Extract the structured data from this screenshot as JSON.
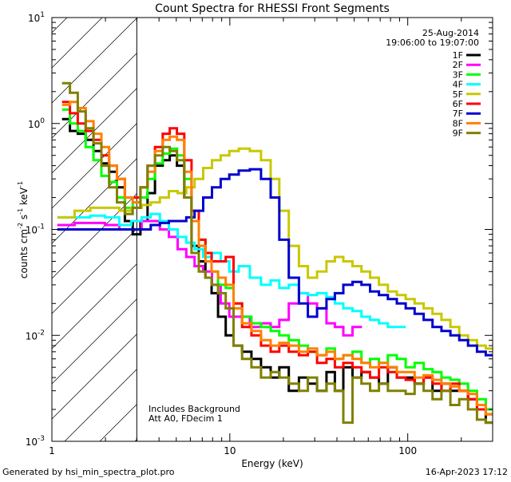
{
  "chart_data": {
    "type": "line",
    "title": "Count Spectra for RHESSI Front Segments",
    "xlabel": "Energy (keV)",
    "ylabel": {
      "base": "counts cm",
      "exp1": "-2",
      "mid1": " s",
      "exp2": "-1",
      "mid2": " keV",
      "exp3": "-1"
    },
    "xscale": "log",
    "yscale": "log",
    "xlim": [
      1,
      300
    ],
    "ylim": [
      0.001,
      10
    ],
    "xticks": [
      {
        "v": 1,
        "label": "1"
      },
      {
        "v": 10,
        "label": "10"
      },
      {
        "v": 100,
        "label": "100"
      }
    ],
    "yticks": [
      {
        "v": 10,
        "base": "10",
        "exp": "1"
      },
      {
        "v": 1,
        "base": "10",
        "exp": "0"
      },
      {
        "v": 0.1,
        "base": "10",
        "exp": "-1"
      },
      {
        "v": 0.01,
        "base": "10",
        "exp": "-2"
      },
      {
        "v": 0.001,
        "base": "10",
        "exp": "-3"
      }
    ],
    "hatched_region": {
      "x_from": 1,
      "x_to": 3
    },
    "annotations": {
      "date": "25-Aug-2014",
      "time_range": "19:06:00 to 19:07:00",
      "note1": "Includes Background",
      "note2": "Att A0, FDecim 1"
    },
    "footer_left": "Generated by hsi_min_spectra_plot.pro",
    "footer_right": "16-Apr-2023 17:12",
    "series": [
      {
        "name": "1F",
        "color": "#000000",
        "x": [
          1.2,
          1.33,
          1.47,
          1.63,
          1.8,
          2.0,
          2.2,
          2.45,
          2.7,
          3.0,
          3.3,
          3.6,
          4.0,
          4.4,
          4.8,
          5.3,
          5.8,
          6.4,
          7.0,
          7.6,
          8.2,
          9.0,
          10,
          11,
          12.5,
          14,
          16,
          18,
          20,
          23,
          26,
          29,
          33,
          37,
          41,
          46,
          52,
          58,
          65,
          73,
          82,
          92,
          103,
          116,
          130,
          146,
          164,
          184,
          206,
          231,
          260,
          290
        ],
        "y": [
          1.1,
          0.85,
          0.8,
          0.7,
          0.55,
          0.42,
          0.35,
          0.25,
          0.12,
          0.09,
          0.12,
          0.22,
          0.4,
          0.45,
          0.5,
          0.4,
          0.2,
          0.07,
          0.05,
          0.035,
          0.025,
          0.015,
          0.01,
          0.008,
          0.007,
          0.006,
          0.005,
          0.004,
          0.005,
          0.003,
          0.004,
          0.0035,
          0.003,
          0.0045,
          0.003,
          0.005,
          0.004,
          0.0045,
          0.004,
          0.0035,
          0.005,
          0.004,
          0.004,
          0.0035,
          0.004,
          0.003,
          0.0035,
          0.003,
          0.003,
          0.0025,
          0.002,
          0.0015
        ]
      },
      {
        "name": "2F",
        "color": "#ff00ff",
        "x": [
          1.2,
          1.5,
          1.8,
          2.2,
          2.6,
          3.0,
          3.4,
          3.8,
          4.3,
          4.8,
          5.4,
          6.0,
          6.7,
          7.5,
          8.4,
          9.4,
          10.5,
          12,
          14,
          16,
          18,
          20,
          23,
          26,
          29,
          33,
          37,
          41,
          46,
          52
        ],
        "y": [
          0.11,
          0.115,
          0.115,
          0.11,
          0.1,
          0.1,
          0.12,
          0.12,
          0.1,
          0.085,
          0.065,
          0.055,
          0.045,
          0.04,
          0.03,
          0.02,
          0.015,
          0.015,
          0.012,
          0.013,
          0.012,
          0.014,
          0.02,
          0.025,
          0.02,
          0.018,
          0.013,
          0.012,
          0.01,
          0.012
        ]
      },
      {
        "name": "3F",
        "color": "#00ff00",
        "x": [
          1.2,
          1.33,
          1.47,
          1.63,
          1.8,
          2.0,
          2.2,
          2.45,
          2.7,
          3.0,
          3.3,
          3.6,
          4.0,
          4.4,
          4.8,
          5.3,
          5.8,
          6.4,
          7.0,
          7.6,
          8.2,
          9.0,
          10,
          11,
          12.5,
          14,
          16,
          18,
          20,
          23,
          26,
          29,
          33,
          37,
          41,
          46,
          52,
          58,
          65,
          73,
          82,
          92,
          103,
          116,
          130,
          146,
          164,
          184,
          206,
          231,
          260,
          290
        ],
        "y": [
          1.35,
          1.0,
          0.85,
          0.6,
          0.45,
          0.32,
          0.28,
          0.2,
          0.16,
          0.18,
          0.2,
          0.3,
          0.42,
          0.52,
          0.58,
          0.5,
          0.3,
          0.12,
          0.08,
          0.06,
          0.04,
          0.03,
          0.028,
          0.02,
          0.015,
          0.013,
          0.012,
          0.011,
          0.01,
          0.009,
          0.008,
          0.007,
          0.0065,
          0.0075,
          0.006,
          0.0065,
          0.007,
          0.0055,
          0.006,
          0.0055,
          0.0065,
          0.006,
          0.005,
          0.0055,
          0.0048,
          0.0045,
          0.004,
          0.0038,
          0.0035,
          0.003,
          0.0025,
          0.002
        ]
      },
      {
        "name": "4F",
        "color": "#00ffff",
        "x": [
          1.2,
          1.5,
          1.8,
          2.2,
          2.6,
          3.0,
          3.4,
          3.8,
          4.3,
          4.8,
          5.4,
          6.0,
          6.7,
          7.5,
          8.4,
          9.4,
          10.5,
          12,
          14,
          16,
          18,
          20,
          23,
          26,
          29,
          33,
          37,
          41,
          46,
          52,
          58,
          65,
          73,
          82,
          92
        ],
        "y": [
          0.13,
          0.13,
          0.135,
          0.13,
          0.11,
          0.12,
          0.13,
          0.14,
          0.12,
          0.1,
          0.085,
          0.075,
          0.065,
          0.055,
          0.06,
          0.05,
          0.04,
          0.045,
          0.035,
          0.03,
          0.033,
          0.028,
          0.03,
          0.025,
          0.024,
          0.025,
          0.023,
          0.02,
          0.018,
          0.017,
          0.015,
          0.014,
          0.013,
          0.012,
          0.012
        ]
      },
      {
        "name": "5F",
        "color": "#c8c800",
        "x": [
          1.2,
          1.5,
          1.8,
          2.2,
          2.6,
          3.0,
          3.4,
          3.8,
          4.3,
          4.8,
          5.4,
          6.0,
          6.7,
          7.5,
          8.4,
          9.4,
          10.5,
          12,
          14,
          16,
          18,
          20,
          23,
          26,
          29,
          33,
          37,
          41,
          46,
          52,
          58,
          65,
          73,
          82,
          92,
          103,
          116,
          130,
          146,
          164,
          184,
          206,
          231,
          260,
          290
        ],
        "y": [
          0.13,
          0.15,
          0.16,
          0.16,
          0.15,
          0.16,
          0.17,
          0.18,
          0.2,
          0.23,
          0.22,
          0.25,
          0.3,
          0.38,
          0.45,
          0.5,
          0.55,
          0.58,
          0.55,
          0.45,
          0.3,
          0.15,
          0.07,
          0.045,
          0.035,
          0.04,
          0.05,
          0.055,
          0.05,
          0.045,
          0.04,
          0.035,
          0.03,
          0.026,
          0.024,
          0.022,
          0.02,
          0.018,
          0.016,
          0.014,
          0.012,
          0.01,
          0.009,
          0.008,
          0.0075
        ]
      },
      {
        "name": "6F",
        "color": "#ff0000",
        "x": [
          1.2,
          1.33,
          1.47,
          1.63,
          1.8,
          2.0,
          2.2,
          2.45,
          2.7,
          3.0,
          3.3,
          3.6,
          4.0,
          4.4,
          4.8,
          5.3,
          5.8,
          6.4,
          7.0,
          7.6,
          8.2,
          9.0,
          10,
          11,
          12.5,
          14,
          16,
          18,
          20,
          23,
          26,
          29,
          33,
          37,
          41,
          46,
          52,
          58,
          65,
          73,
          82,
          92,
          103,
          116,
          130,
          146,
          164,
          184,
          206,
          231,
          260,
          290
        ],
        "y": [
          1.6,
          1.25,
          1.0,
          0.85,
          0.7,
          0.5,
          0.4,
          0.3,
          0.2,
          0.2,
          0.25,
          0.4,
          0.6,
          0.8,
          0.9,
          0.8,
          0.45,
          0.15,
          0.08,
          0.06,
          0.05,
          0.05,
          0.055,
          0.02,
          0.012,
          0.01,
          0.008,
          0.007,
          0.008,
          0.007,
          0.0065,
          0.007,
          0.0055,
          0.006,
          0.005,
          0.0055,
          0.005,
          0.0045,
          0.004,
          0.005,
          0.0045,
          0.004,
          0.0038,
          0.0035,
          0.004,
          0.0035,
          0.003,
          0.0035,
          0.003,
          0.0025,
          0.002,
          0.0018
        ]
      },
      {
        "name": "7F",
        "color": "#0000cd",
        "x": [
          1.2,
          1.5,
          1.8,
          2.2,
          2.6,
          3.0,
          3.4,
          3.8,
          4.3,
          4.8,
          5.4,
          6.0,
          6.7,
          7.5,
          8.4,
          9.4,
          10.5,
          12,
          14,
          16,
          18,
          20,
          23,
          26,
          29,
          33,
          37,
          41,
          46,
          52,
          58,
          65,
          73,
          82,
          92,
          103,
          116,
          130,
          146,
          164,
          184,
          206,
          231,
          260,
          290
        ],
        "y": [
          0.1,
          0.1,
          0.1,
          0.1,
          0.1,
          0.1,
          0.1,
          0.11,
          0.115,
          0.12,
          0.12,
          0.13,
          0.15,
          0.2,
          0.25,
          0.3,
          0.33,
          0.36,
          0.37,
          0.3,
          0.2,
          0.08,
          0.035,
          0.02,
          0.015,
          0.018,
          0.022,
          0.025,
          0.03,
          0.032,
          0.03,
          0.026,
          0.024,
          0.022,
          0.02,
          0.018,
          0.016,
          0.014,
          0.012,
          0.011,
          0.01,
          0.009,
          0.008,
          0.007,
          0.0065
        ]
      },
      {
        "name": "8F",
        "color": "#ff8000",
        "x": [
          1.2,
          1.33,
          1.47,
          1.63,
          1.8,
          2.0,
          2.2,
          2.45,
          2.7,
          3.0,
          3.3,
          3.6,
          4.0,
          4.4,
          4.8,
          5.3,
          5.8,
          6.4,
          7.0,
          7.6,
          8.2,
          9.0,
          10,
          11,
          12.5,
          14,
          16,
          18,
          20,
          23,
          26,
          29,
          33,
          37,
          41,
          46,
          52,
          58,
          65,
          73,
          82,
          92,
          103,
          116,
          130,
          146,
          164,
          184,
          206,
          231,
          260,
          290
        ],
        "y": [
          1.5,
          1.6,
          1.4,
          1.05,
          0.8,
          0.6,
          0.4,
          0.3,
          0.2,
          0.18,
          0.25,
          0.35,
          0.55,
          0.7,
          0.75,
          0.7,
          0.35,
          0.12,
          0.07,
          0.05,
          0.04,
          0.035,
          0.03,
          0.018,
          0.013,
          0.011,
          0.009,
          0.008,
          0.0085,
          0.008,
          0.007,
          0.0075,
          0.0065,
          0.007,
          0.006,
          0.0065,
          0.006,
          0.0055,
          0.005,
          0.0055,
          0.005,
          0.0045,
          0.0045,
          0.004,
          0.0042,
          0.0038,
          0.0035,
          0.0033,
          0.003,
          0.0028,
          0.0022,
          0.0018
        ]
      },
      {
        "name": "9F",
        "color": "#808000",
        "x": [
          1.2,
          1.33,
          1.47,
          1.63,
          1.8,
          2.0,
          2.2,
          2.45,
          2.7,
          3.0,
          3.3,
          3.6,
          4.0,
          4.4,
          4.8,
          5.3,
          5.8,
          6.4,
          7.0,
          7.6,
          8.2,
          9.0,
          10,
          11,
          12.5,
          14,
          16,
          18,
          20,
          23,
          26,
          29,
          33,
          37,
          41,
          46,
          52,
          58,
          65,
          73,
          82,
          92,
          103,
          116,
          130,
          146,
          164,
          184,
          206,
          231,
          260,
          290
        ],
        "y": [
          2.4,
          1.95,
          1.3,
          0.9,
          0.65,
          0.4,
          0.25,
          0.18,
          0.14,
          0.16,
          0.25,
          0.4,
          0.5,
          0.6,
          0.55,
          0.45,
          0.2,
          0.06,
          0.04,
          0.035,
          0.03,
          0.025,
          0.018,
          0.008,
          0.006,
          0.005,
          0.004,
          0.0045,
          0.004,
          0.0035,
          0.003,
          0.004,
          0.003,
          0.0035,
          0.003,
          0.0015,
          0.004,
          0.0035,
          0.003,
          0.0035,
          0.003,
          0.003,
          0.0028,
          0.0035,
          0.003,
          0.0025,
          0.003,
          0.0022,
          0.0025,
          0.002,
          0.0016,
          0.0015
        ]
      }
    ]
  }
}
